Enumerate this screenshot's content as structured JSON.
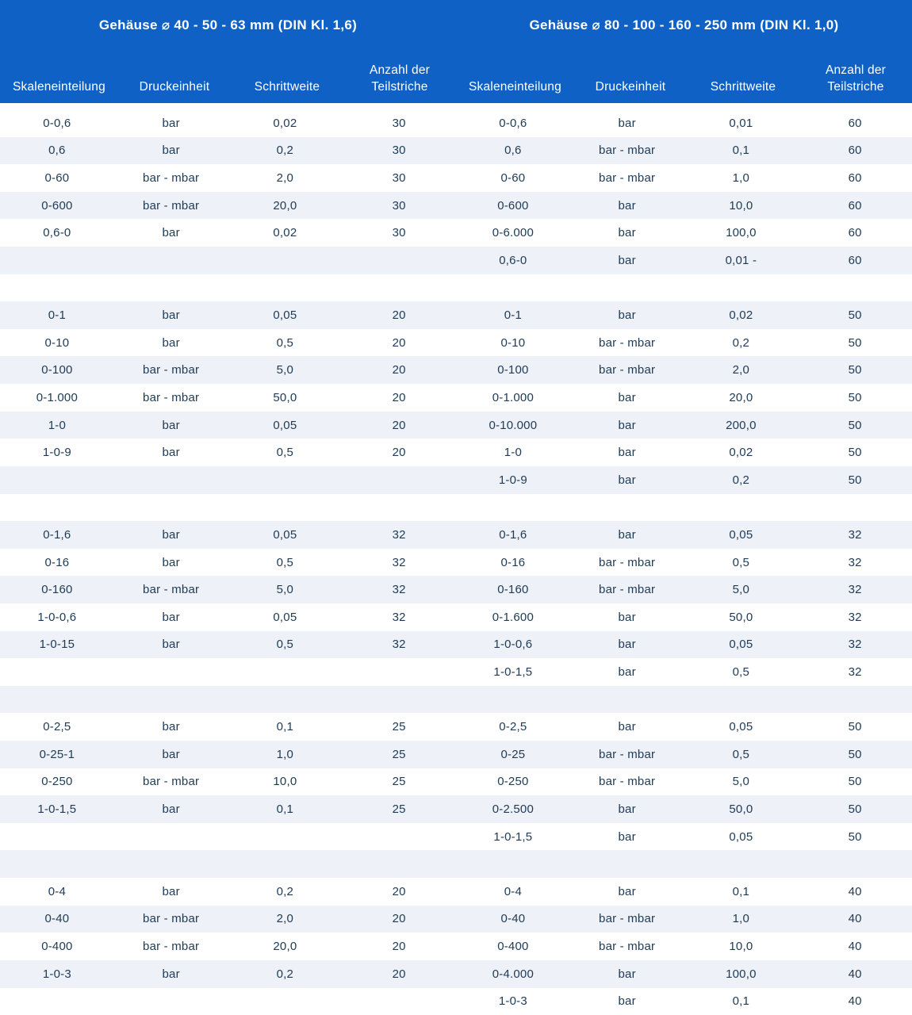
{
  "colors": {
    "header_bg": "#0f61c6",
    "header_text": "#ffffff",
    "stripe_bg": "#eef1f7",
    "row_bg": "#ffffff",
    "cell_text": "#1e3a55"
  },
  "tables": [
    {
      "title": "Gehäuse ⌀ 40 - 50 - 63 mm (DIN Kl. 1,6)"
    },
    {
      "title": "Gehäuse ⌀ 80 - 100 - 160 - 250 mm (DIN Kl. 1,0)"
    }
  ],
  "columns": [
    "Skaleneinteilung",
    "Druckeinheit",
    "Schrittweite",
    "Anzahl der Teilstriche"
  ],
  "rows": [
    {
      "left": [
        "0-0,6",
        "bar",
        "0,02",
        "30"
      ],
      "right": [
        "0-0,6",
        "bar",
        "0,01",
        "60"
      ]
    },
    {
      "left": [
        "0,6",
        "bar",
        "0,2",
        "30"
      ],
      "right": [
        "0,6",
        "bar - mbar",
        "0,1",
        "60"
      ]
    },
    {
      "left": [
        "0-60",
        "bar - mbar",
        "2,0",
        "30"
      ],
      "right": [
        "0-60",
        "bar - mbar",
        "1,0",
        "60"
      ]
    },
    {
      "left": [
        "0-600",
        "bar - mbar",
        "20,0",
        "30"
      ],
      "right": [
        "0-600",
        "bar",
        "10,0",
        "60"
      ]
    },
    {
      "left": [
        "0,6-0",
        "bar",
        "0,02",
        "30"
      ],
      "right": [
        "0-6.000",
        "bar",
        "100,0",
        "60"
      ]
    },
    {
      "left": null,
      "right": [
        "0,6-0",
        "bar",
        "0,01 -",
        "60"
      ]
    },
    {
      "left": null,
      "right": null
    },
    {
      "left": [
        "0-1",
        "bar",
        "0,05",
        "20"
      ],
      "right": [
        "0-1",
        "bar",
        "0,02",
        "50"
      ]
    },
    {
      "left": [
        "0-10",
        "bar",
        "0,5",
        "20"
      ],
      "right": [
        "0-10",
        "bar - mbar",
        "0,2",
        "50"
      ]
    },
    {
      "left": [
        "0-100",
        "bar - mbar",
        "5,0",
        "20"
      ],
      "right": [
        "0-100",
        "bar - mbar",
        "2,0",
        "50"
      ]
    },
    {
      "left": [
        "0-1.000",
        "bar - mbar",
        "50,0",
        "20"
      ],
      "right": [
        "0-1.000",
        "bar",
        "20,0",
        "50"
      ]
    },
    {
      "left": [
        "1-0",
        "bar",
        "0,05",
        "20"
      ],
      "right": [
        "0-10.000",
        "bar",
        "200,0",
        "50"
      ]
    },
    {
      "left": [
        "1-0-9",
        "bar",
        "0,5",
        "20"
      ],
      "right": [
        "1-0",
        "bar",
        "0,02",
        "50"
      ]
    },
    {
      "left": null,
      "right": [
        "1-0-9",
        "bar",
        "0,2",
        "50"
      ]
    },
    {
      "left": null,
      "right": null
    },
    {
      "left": [
        "0-1,6",
        "bar",
        "0,05",
        "32"
      ],
      "right": [
        "0-1,6",
        "bar",
        "0,05",
        "32"
      ]
    },
    {
      "left": [
        "0-16",
        "bar",
        "0,5",
        "32"
      ],
      "right": [
        "0-16",
        "bar - mbar",
        "0,5",
        "32"
      ]
    },
    {
      "left": [
        "0-160",
        "bar - mbar",
        "5,0",
        "32"
      ],
      "right": [
        "0-160",
        "bar - mbar",
        "5,0",
        "32"
      ]
    },
    {
      "left": [
        "1-0-0,6",
        "bar",
        "0,05",
        "32"
      ],
      "right": [
        "0-1.600",
        "bar",
        "50,0",
        "32"
      ]
    },
    {
      "left": [
        "1-0-15",
        "bar",
        "0,5",
        "32"
      ],
      "right": [
        "1-0-0,6",
        "bar",
        "0,05",
        "32"
      ]
    },
    {
      "left": null,
      "right": [
        "1-0-1,5",
        "bar",
        "0,5",
        "32"
      ]
    },
    {
      "left": null,
      "right": null
    },
    {
      "left": [
        "0-2,5",
        "bar",
        "0,1",
        "25"
      ],
      "right": [
        "0-2,5",
        "bar",
        "0,05",
        "50"
      ]
    },
    {
      "left": [
        "0-25-1",
        "bar",
        "1,0",
        "25"
      ],
      "right": [
        "0-25",
        "bar - mbar",
        "0,5",
        "50"
      ]
    },
    {
      "left": [
        "0-250",
        "bar - mbar",
        "10,0",
        "25"
      ],
      "right": [
        "0-250",
        "bar - mbar",
        "5,0",
        "50"
      ]
    },
    {
      "left": [
        "1-0-1,5",
        "bar",
        "0,1",
        "25"
      ],
      "right": [
        "0-2.500",
        "bar",
        "50,0",
        "50"
      ]
    },
    {
      "left": null,
      "right": [
        "1-0-1,5",
        "bar",
        "0,05",
        "50"
      ]
    },
    {
      "left": null,
      "right": null
    },
    {
      "left": [
        "0-4",
        "bar",
        "0,2",
        "20"
      ],
      "right": [
        "0-4",
        "bar",
        "0,1",
        "40"
      ]
    },
    {
      "left": [
        "0-40",
        "bar - mbar",
        "2,0",
        "20"
      ],
      "right": [
        "0-40",
        "bar - mbar",
        "1,0",
        "40"
      ]
    },
    {
      "left": [
        "0-400",
        "bar - mbar",
        "20,0",
        "20"
      ],
      "right": [
        "0-400",
        "bar - mbar",
        "10,0",
        "40"
      ]
    },
    {
      "left": [
        "1-0-3",
        "bar",
        "0,2",
        "20"
      ],
      "right": [
        "0-4.000",
        "bar",
        "100,0",
        "40"
      ]
    },
    {
      "left": null,
      "right": [
        "1-0-3",
        "bar",
        "0,1",
        "40"
      ]
    }
  ]
}
